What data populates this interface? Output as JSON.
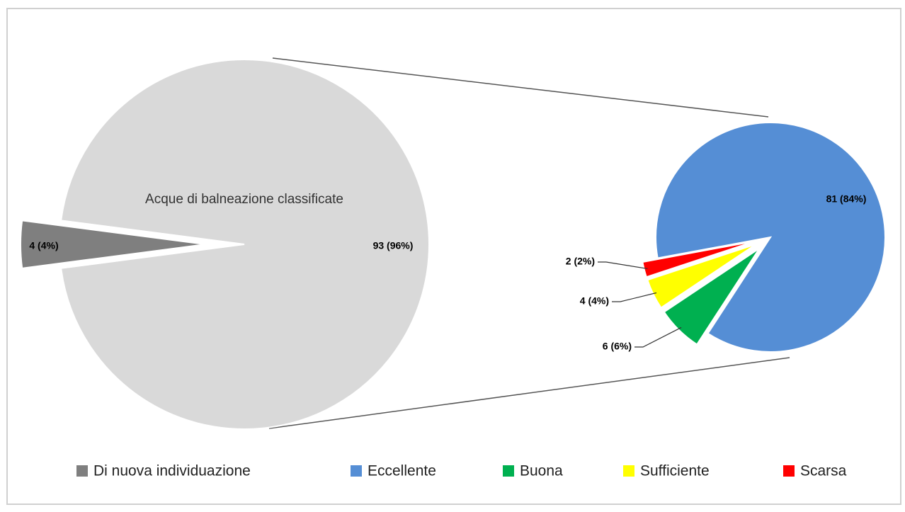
{
  "chart_data": [
    {
      "type": "pie",
      "categories": [
        "Acque di balneazione classificate",
        "Di nuova individuazione"
      ],
      "values": [
        93,
        4
      ],
      "value_labels": [
        "93 (96%)",
        "4 (4%)"
      ],
      "colors": [
        "#d9d9d9",
        "#7f7f7f"
      ]
    },
    {
      "type": "pie",
      "categories": [
        "Eccellente",
        "Buona",
        "Sufficiente",
        "Scarsa"
      ],
      "values": [
        81,
        6,
        4,
        2
      ],
      "value_labels": [
        "81 (84%)",
        "6 (6%)",
        "4 (4%)",
        "2 (2%)"
      ],
      "colors": [
        "#558ed5",
        "#00b050",
        "#ffff00",
        "#ff0000"
      ]
    }
  ]
}
